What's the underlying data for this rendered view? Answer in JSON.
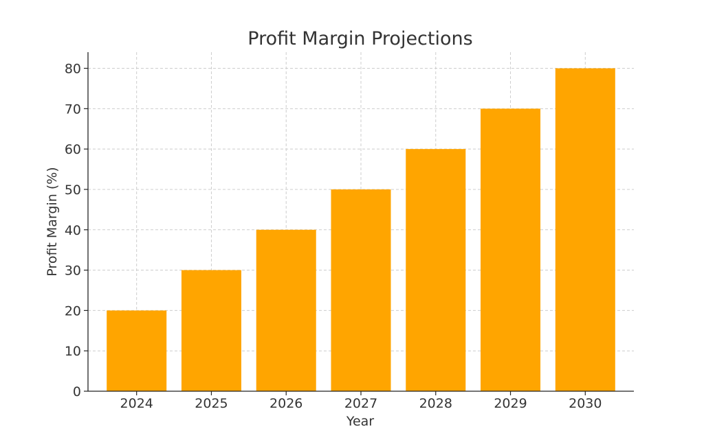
{
  "chart_data": {
    "type": "bar",
    "title": "Profit Margin Projections",
    "xlabel": "Year",
    "ylabel": "Profit Margin (%)",
    "categories": [
      "2024",
      "2025",
      "2026",
      "2027",
      "2028",
      "2029",
      "2030"
    ],
    "values": [
      20,
      30,
      40,
      50,
      60,
      70,
      80
    ],
    "ylim": [
      0,
      84
    ],
    "yticks": [
      0,
      10,
      20,
      30,
      40,
      50,
      60,
      70,
      80
    ],
    "grid": true,
    "bar_color": "#ffa500"
  }
}
